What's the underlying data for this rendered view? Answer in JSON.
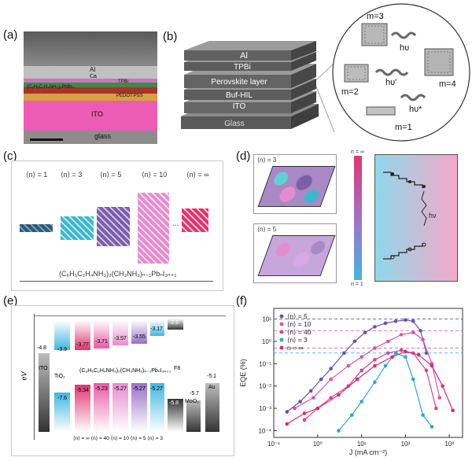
{
  "panels": {
    "a": {
      "label": "(a)",
      "layers": {
        "al": "Al",
        "ca": "Ca",
        "tpbi": "TPBi",
        "perov": "(C₆H₅C₂H₄NH₃)₂PbBr₄",
        "pedot": "PEDOT:PSS",
        "ito": "ITO",
        "glass": "glass"
      }
    },
    "b": {
      "label": "(b)",
      "stack": {
        "al": "Al",
        "tpbi": "TPBi",
        "perov": "Perovskite layer",
        "buf": "Buf-HIL",
        "ito": "ITO",
        "glass": "Glass"
      },
      "inset": {
        "m3": "m=3",
        "m2": "m=2",
        "m4": "m=4",
        "m1": "m=1",
        "hv1": "hυ",
        "hv2": "hυ'",
        "hv3": "hυ*"
      }
    },
    "c": {
      "label": "(c)",
      "n_labels": [
        "⟨n⟩ = 1",
        "⟨n⟩ = 3",
        "⟨n⟩ = 5",
        "⟨n⟩ = 10",
        "⟨n⟩ = ∞"
      ],
      "formula": "(C₆H₅C₂H₄NH₃)₂(CH₃NH₃)ₙ₋₁PbₙI₃ₙ₊₁",
      "dots": "...",
      "colors": [
        "#2f5878",
        "#3fb6cc",
        "#7a5fa8",
        "#e58ccf",
        "#e0356f"
      ]
    },
    "d": {
      "label": "(d)",
      "n3": "⟨n⟩ = 3",
      "n5": "⟨n⟩ = 5",
      "bar_top": "n = ∞",
      "bar_bottom": "n = 1",
      "hv": "hν"
    },
    "e": {
      "label": "(e)",
      "ylabel": "eV",
      "top_values": [
        "-4.8",
        "-3.9",
        "-3.77",
        "-3.71",
        "-3.57",
        "-3.55",
        "-3.17",
        "-2.9"
      ],
      "bottom_values": [
        "-7.6",
        "-5.34",
        "-5.23",
        "-5.27",
        "-5.27",
        "-5.27",
        "-5.8",
        "-5.7",
        "-5.1"
      ],
      "names": {
        "ito": "ITO",
        "tio2": "TiO₂",
        "f8": "F8",
        "moo3": "MoO₃",
        "au": "Au"
      },
      "formula": "(C₆H₅C₂H₄NH₃)₂(CH₃NH₃)ₙ₋₁PbₙI₃ₙ₊₁",
      "bottom_row": "⟨n⟩ = ∞  ⟨n⟩ = 40  ⟨n⟩ = 10  ⟨n⟩ = 5  ⟨n⟩ = 3"
    },
    "f": {
      "label": "(f)"
    }
  },
  "chart_data": {
    "type": "scatter",
    "xlabel": "J (mA cm⁻²)",
    "ylabel": "EQE (%)",
    "xscale": "log",
    "yscale": "log",
    "xlim": [
      0.1,
      2000
    ],
    "ylim": [
      5e-05,
      30
    ],
    "xticks": [
      "10⁻¹",
      "10⁰",
      "10¹",
      "10²",
      "10³"
    ],
    "yticks": [
      "10¹",
      "10⁰",
      "10⁻¹",
      "10⁻²",
      "10⁻³",
      "10⁻⁴"
    ],
    "legend_position": "top-left",
    "series": [
      {
        "name": "⟨n⟩ = 5",
        "color": "#6a4fb0",
        "hline": 10,
        "x": [
          0.2,
          0.4,
          0.7,
          1.2,
          2,
          4,
          7,
          12,
          20,
          35,
          60,
          100,
          150,
          220,
          300
        ],
        "y": [
          0.0007,
          0.002,
          0.006,
          0.02,
          0.06,
          0.3,
          1,
          2.5,
          4.5,
          6.5,
          8,
          9,
          8,
          3,
          0.3
        ]
      },
      {
        "name": "⟨n⟩ = 10",
        "color": "#e24fa8",
        "hline": 3,
        "x": [
          0.3,
          0.8,
          2,
          5,
          10,
          20,
          40,
          80,
          150,
          250,
          400,
          600
        ],
        "y": [
          0.001,
          0.003,
          0.02,
          0.08,
          0.2,
          0.5,
          1,
          2,
          2.5,
          1.2,
          0.1,
          0.003
        ]
      },
      {
        "name": "⟨n⟩ = 40",
        "color": "#d6409a",
        "hline": 0.5,
        "x": [
          0.5,
          1,
          2,
          5,
          10,
          20,
          40,
          80,
          150,
          300,
          500
        ],
        "y": [
          0.0003,
          0.001,
          0.003,
          0.01,
          0.05,
          0.15,
          0.3,
          0.4,
          0.3,
          0.05,
          0.001
        ]
      },
      {
        "name": "⟨n⟩ = 3",
        "color": "#29a8d0",
        "hline": 0.3,
        "x": [
          3,
          6,
          10,
          20,
          35,
          60,
          100,
          150,
          250,
          400
        ],
        "y": [
          0.0001,
          0.0005,
          0.002,
          0.015,
          0.08,
          0.3,
          0.2,
          0.02,
          0.0005,
          0.00015
        ]
      },
      {
        "name": "n = ∞",
        "color": "#e02870",
        "hline": null,
        "x": [
          0.2,
          0.5,
          1,
          3,
          8,
          20,
          50,
          100,
          200,
          400,
          700,
          1200
        ],
        "y": [
          0.0002,
          0.0006,
          0.001,
          0.004,
          0.02,
          0.08,
          0.2,
          0.35,
          0.25,
          0.08,
          0.01,
          0.0008
        ]
      }
    ]
  }
}
